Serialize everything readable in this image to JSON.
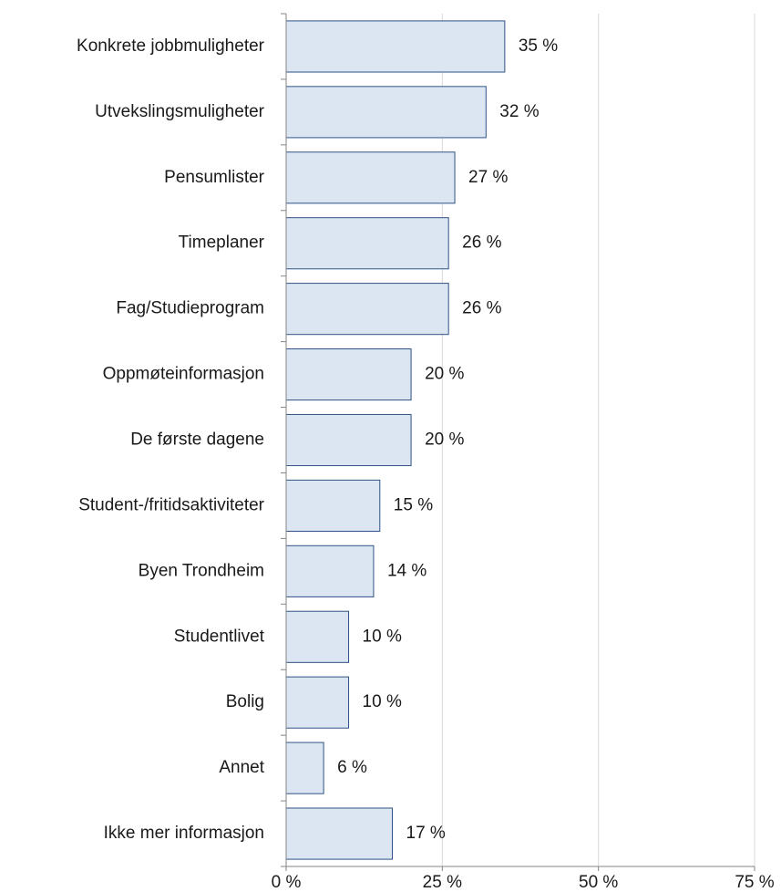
{
  "chart_data": {
    "type": "bar",
    "orientation": "horizontal",
    "categories": [
      "Konkrete jobbmuligheter",
      "Utvekslingsmuligheter",
      "Pensumlister",
      "Timeplaner",
      "Fag/Studieprogram",
      "Oppmøteinformasjon",
      "De første dagene",
      "Student-/fritidsaktiviteter",
      "Byen Trondheim",
      "Studentlivet",
      "Bolig",
      "Annet",
      "Ikke mer informasjon"
    ],
    "values": [
      35,
      32,
      27,
      26,
      26,
      20,
      20,
      15,
      14,
      10,
      10,
      6,
      17
    ],
    "value_labels": [
      "35 %",
      "32 %",
      "27 %",
      "26 %",
      "26 %",
      "20 %",
      "20 %",
      "15 %",
      "14 %",
      "10 %",
      "10 %",
      "6 %",
      "17 %"
    ],
    "color": "#dce6f2",
    "edge_color": "#2f5285",
    "xlim": [
      0,
      75
    ],
    "xticks": [
      {
        "value": 0,
        "label": "0 %"
      },
      {
        "value": 25,
        "label": "25 %"
      },
      {
        "value": 50,
        "label": "50 %"
      },
      {
        "value": 75,
        "label": "75 %"
      }
    ],
    "grid": true
  }
}
